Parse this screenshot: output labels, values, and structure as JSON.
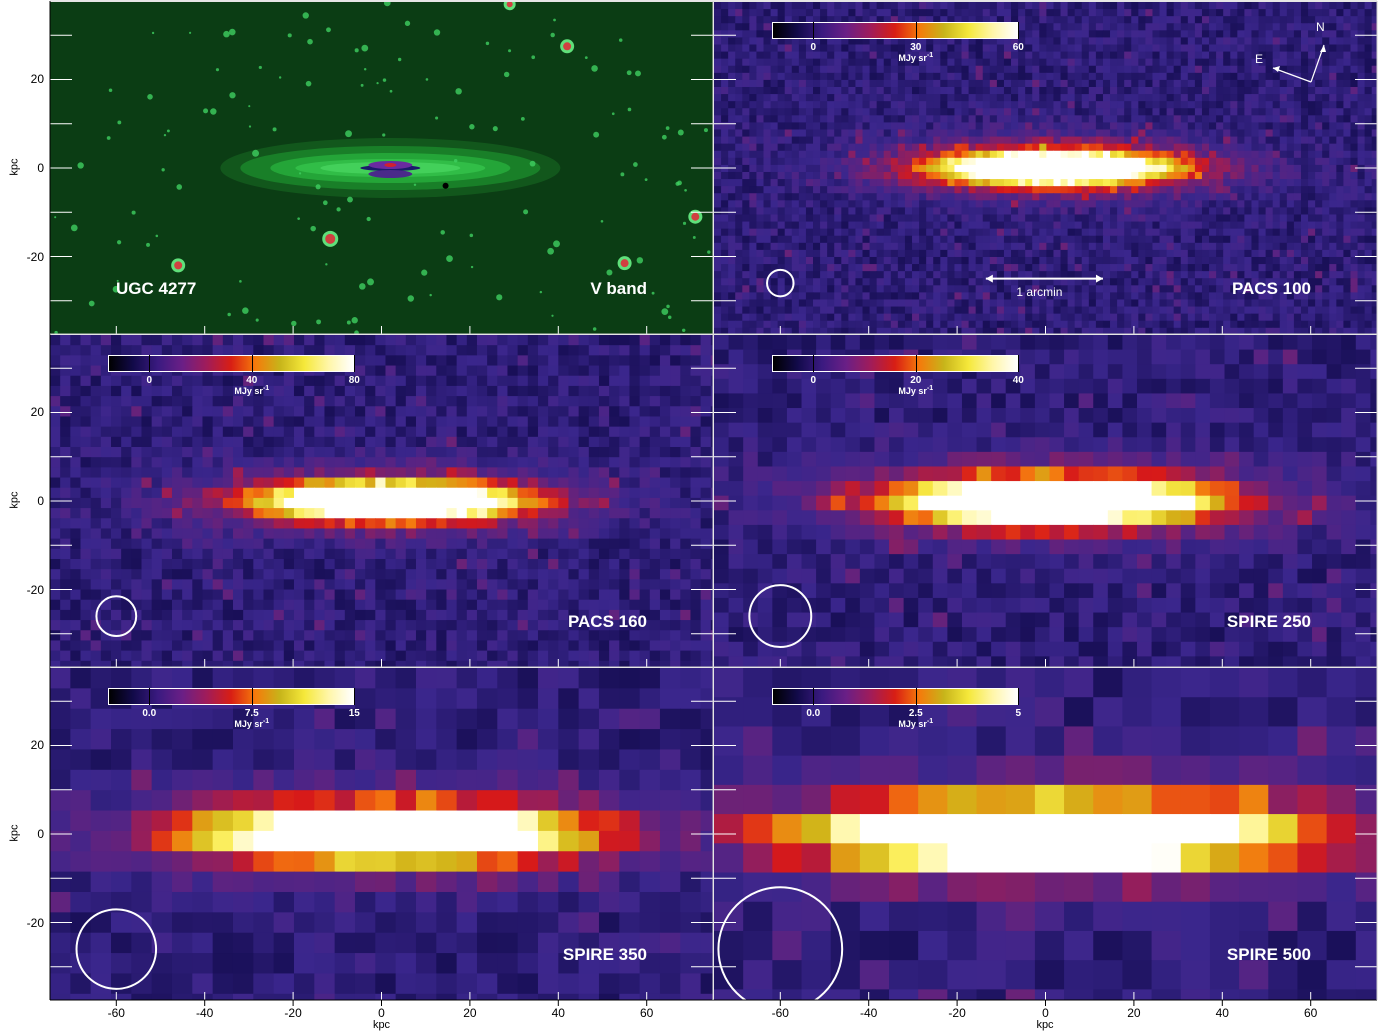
{
  "axes": {
    "unit_label": "kpc",
    "x_ticks": [
      "-60",
      "-40",
      "-20",
      "0",
      "20",
      "40",
      "60"
    ],
    "y_ticks": [
      "20",
      "0",
      "-20"
    ]
  },
  "panels": [
    {
      "id": "vband",
      "left_label": "UGC 4277",
      "right_label": "V band",
      "colorbar": null,
      "beam_kpc": 0
    },
    {
      "id": "pacs100",
      "left_label": "",
      "right_label": "PACS 100",
      "colorbar": {
        "ticks": [
          "0",
          "30",
          "60"
        ],
        "tick_values": [
          0,
          30,
          60
        ],
        "min": -12,
        "max": 60,
        "unit": "MJy sr",
        "unit_exp": "-1"
      },
      "beam_kpc": 3
    },
    {
      "id": "pacs160",
      "left_label": "",
      "right_label": "PACS 160",
      "colorbar": {
        "ticks": [
          "0",
          "40",
          "80"
        ],
        "tick_values": [
          0,
          40,
          80
        ],
        "min": -16,
        "max": 80,
        "unit": "MJy sr",
        "unit_exp": "-1"
      },
      "beam_kpc": 4.5
    },
    {
      "id": "spire250",
      "left_label": "",
      "right_label": "SPIRE 250",
      "colorbar": {
        "ticks": [
          "0",
          "20",
          "40"
        ],
        "tick_values": [
          0,
          20,
          40
        ],
        "min": -8,
        "max": 40,
        "unit": "MJy sr",
        "unit_exp": "-1"
      },
      "beam_kpc": 7
    },
    {
      "id": "spire350",
      "left_label": "",
      "right_label": "SPIRE 350",
      "colorbar": {
        "ticks": [
          "0.0",
          "7.5",
          "15"
        ],
        "tick_values": [
          0,
          7.5,
          15
        ],
        "min": -3,
        "max": 15,
        "unit": "MJy sr",
        "unit_exp": "-1"
      },
      "beam_kpc": 9
    },
    {
      "id": "spire500",
      "left_label": "",
      "right_label": "SPIRE 500",
      "colorbar": {
        "ticks": [
          "0.0",
          "2.5",
          "5"
        ],
        "tick_values": [
          0,
          2.5,
          5
        ],
        "min": -1,
        "max": 5,
        "unit": "MJy sr",
        "unit_exp": "-1"
      },
      "beam_kpc": 14
    }
  ],
  "compass": {
    "north": "N",
    "east": "E"
  },
  "scale_bar": {
    "label": "1 arcmin"
  }
}
